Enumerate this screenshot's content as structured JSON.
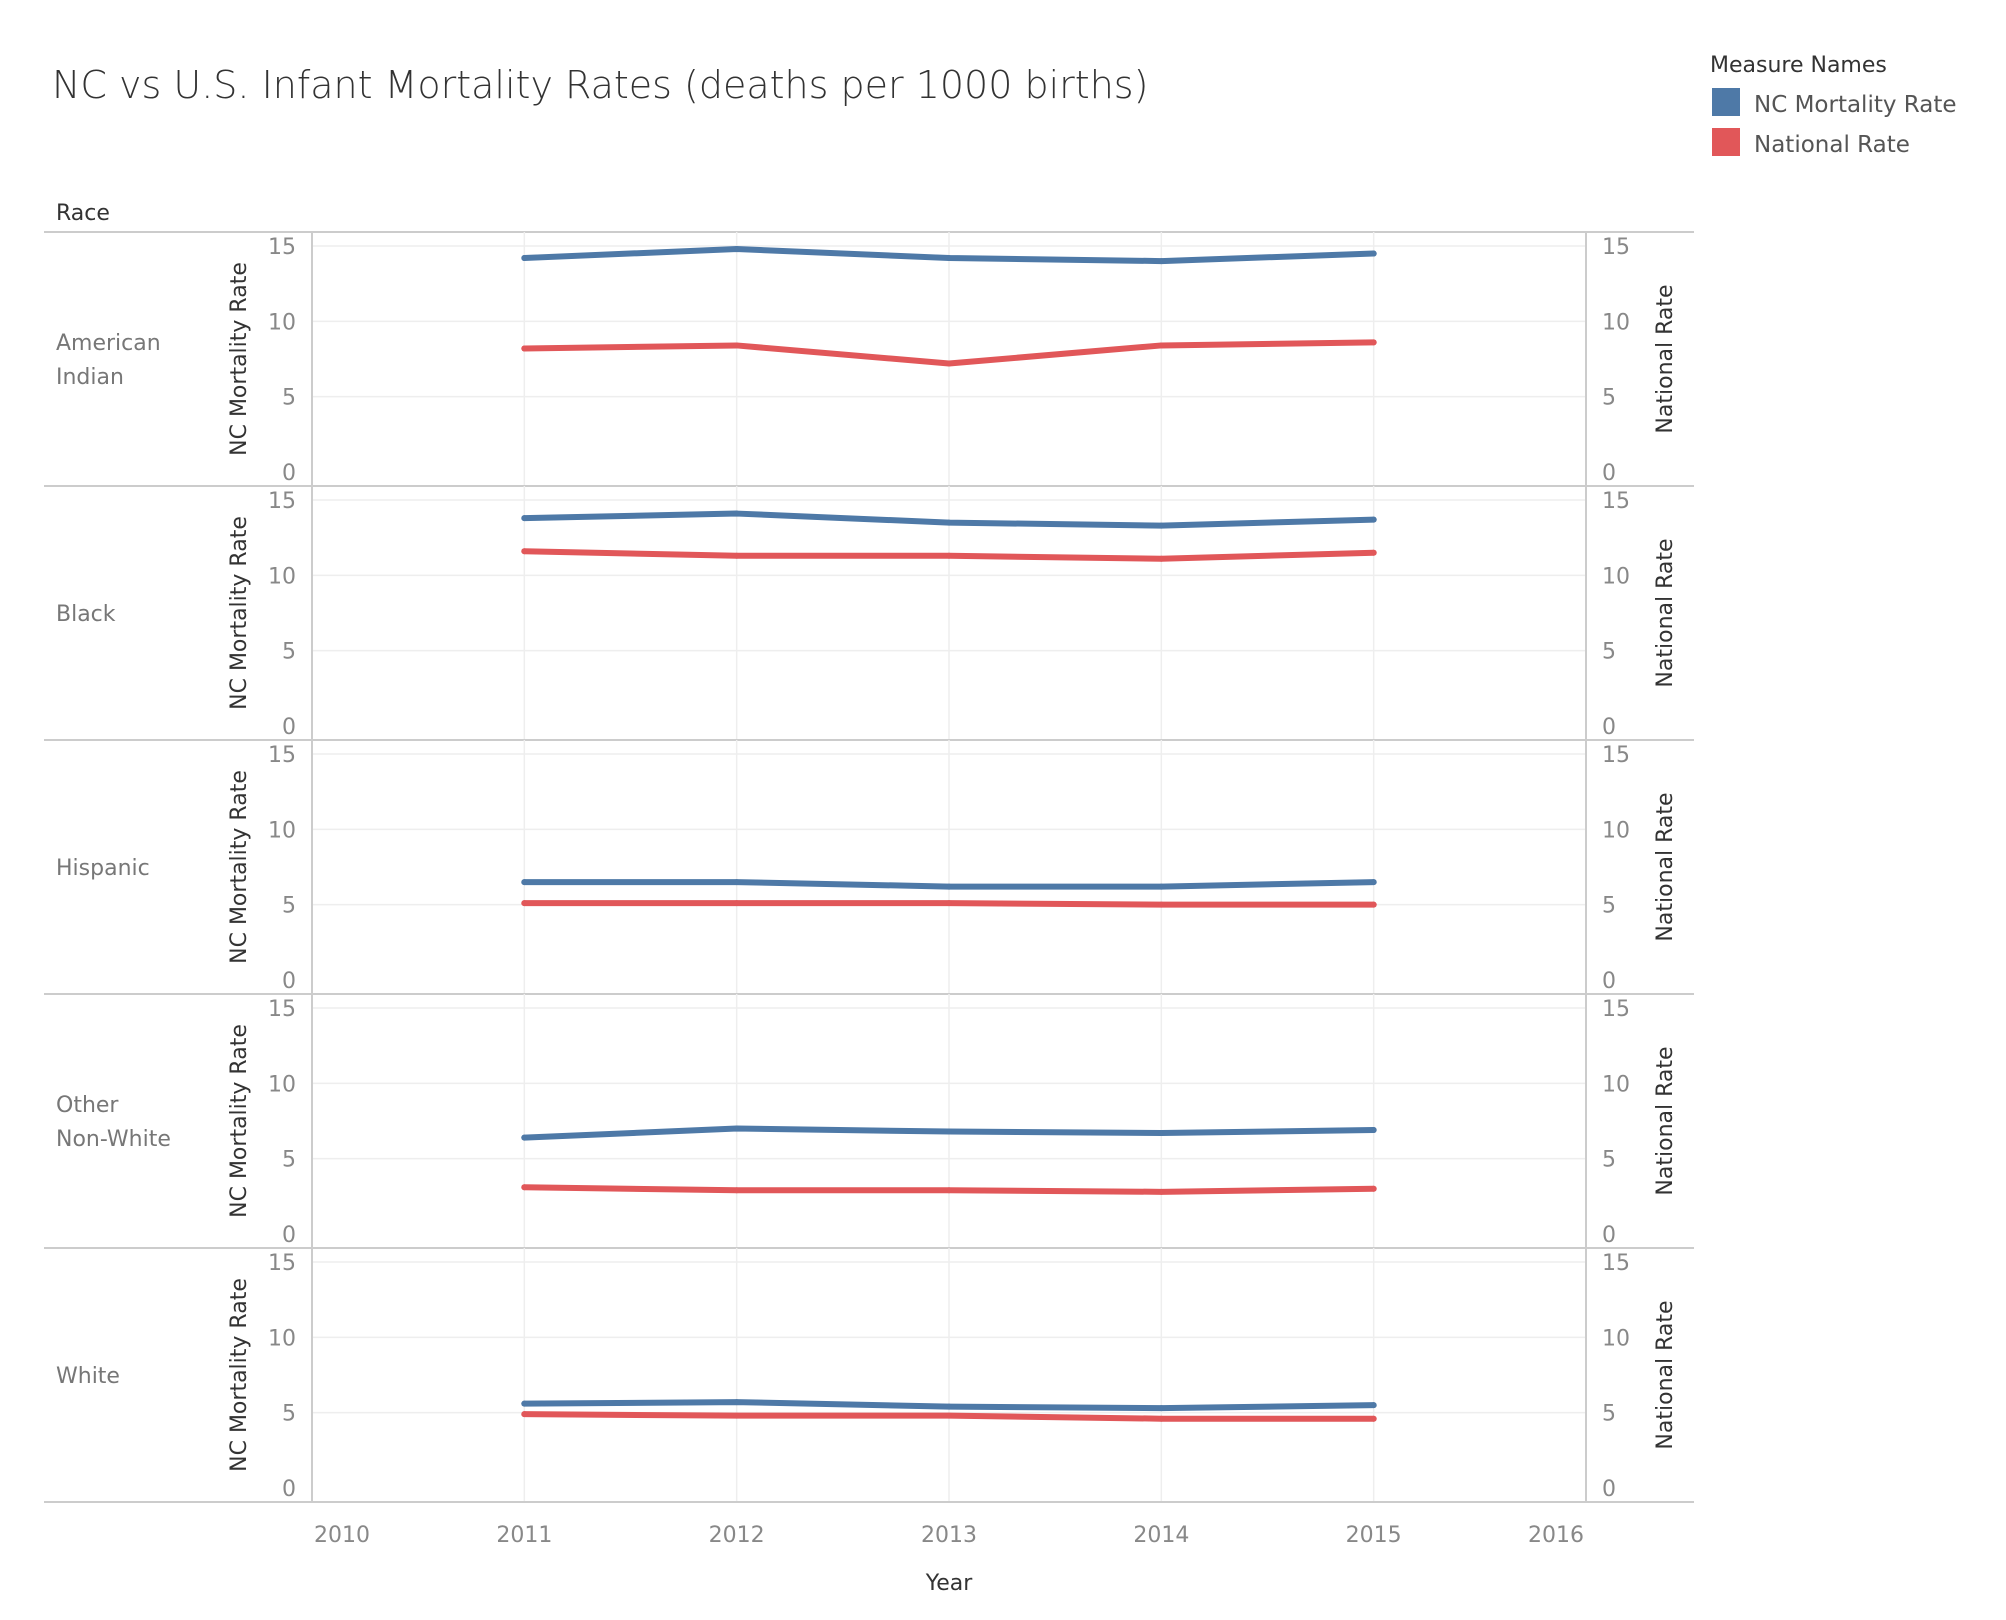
{
  "chart_data": {
    "type": "line",
    "title": "NC vs U.S. Infant Mortality Rates (deaths per 1000 births)",
    "row_header": "Race",
    "xlabel": "Year",
    "x_ticks": [
      "2010",
      "2011",
      "2012",
      "2013",
      "2014",
      "2015",
      "2016"
    ],
    "xlim": [
      2010,
      2016
    ],
    "y_left_label": "NC Mortality Rate",
    "y_right_label": "National Rate",
    "y_ticks": [
      "0",
      "5",
      "10",
      "15"
    ],
    "ylim": [
      0,
      15
    ],
    "grid": true,
    "legend": {
      "title": "Measure Names",
      "placement": "top-right",
      "items": [
        {
          "name": "NC Mortality Rate",
          "color": "#4e79a7"
        },
        {
          "name": "National Rate",
          "color": "#e15759"
        }
      ]
    },
    "x": [
      2011,
      2012,
      2013,
      2014,
      2015
    ],
    "panels": [
      {
        "race": "American Indian",
        "label_lines": [
          "American",
          "Indian"
        ],
        "series": [
          {
            "name": "NC Mortality Rate",
            "values": [
              14.2,
              14.8,
              14.2,
              14.0,
              14.5
            ]
          },
          {
            "name": "National Rate",
            "values": [
              8.2,
              8.4,
              7.2,
              8.4,
              8.6
            ]
          }
        ]
      },
      {
        "race": "Black",
        "label_lines": [
          "Black"
        ],
        "series": [
          {
            "name": "NC Mortality Rate",
            "values": [
              13.8,
              14.1,
              13.5,
              13.3,
              13.7
            ]
          },
          {
            "name": "National Rate",
            "values": [
              11.6,
              11.3,
              11.3,
              11.1,
              11.5
            ]
          }
        ]
      },
      {
        "race": "Hispanic",
        "label_lines": [
          "Hispanic"
        ],
        "series": [
          {
            "name": "NC Mortality Rate",
            "values": [
              6.5,
              6.5,
              6.2,
              6.2,
              6.5
            ]
          },
          {
            "name": "National Rate",
            "values": [
              5.1,
              5.1,
              5.1,
              5.0,
              5.0
            ]
          }
        ]
      },
      {
        "race": "Other Non-White",
        "label_lines": [
          "Other",
          "Non-White"
        ],
        "series": [
          {
            "name": "NC Mortality Rate",
            "values": [
              6.4,
              7.0,
              6.8,
              6.7,
              6.9
            ]
          },
          {
            "name": "National Rate",
            "values": [
              3.1,
              2.9,
              2.9,
              2.8,
              3.0
            ]
          }
        ]
      },
      {
        "race": "White",
        "label_lines": [
          "White"
        ],
        "series": [
          {
            "name": "NC Mortality Rate",
            "values": [
              5.6,
              5.7,
              5.4,
              5.3,
              5.5
            ]
          },
          {
            "name": "National Rate",
            "values": [
              4.9,
              4.8,
              4.8,
              4.6,
              4.6
            ]
          }
        ]
      }
    ]
  }
}
